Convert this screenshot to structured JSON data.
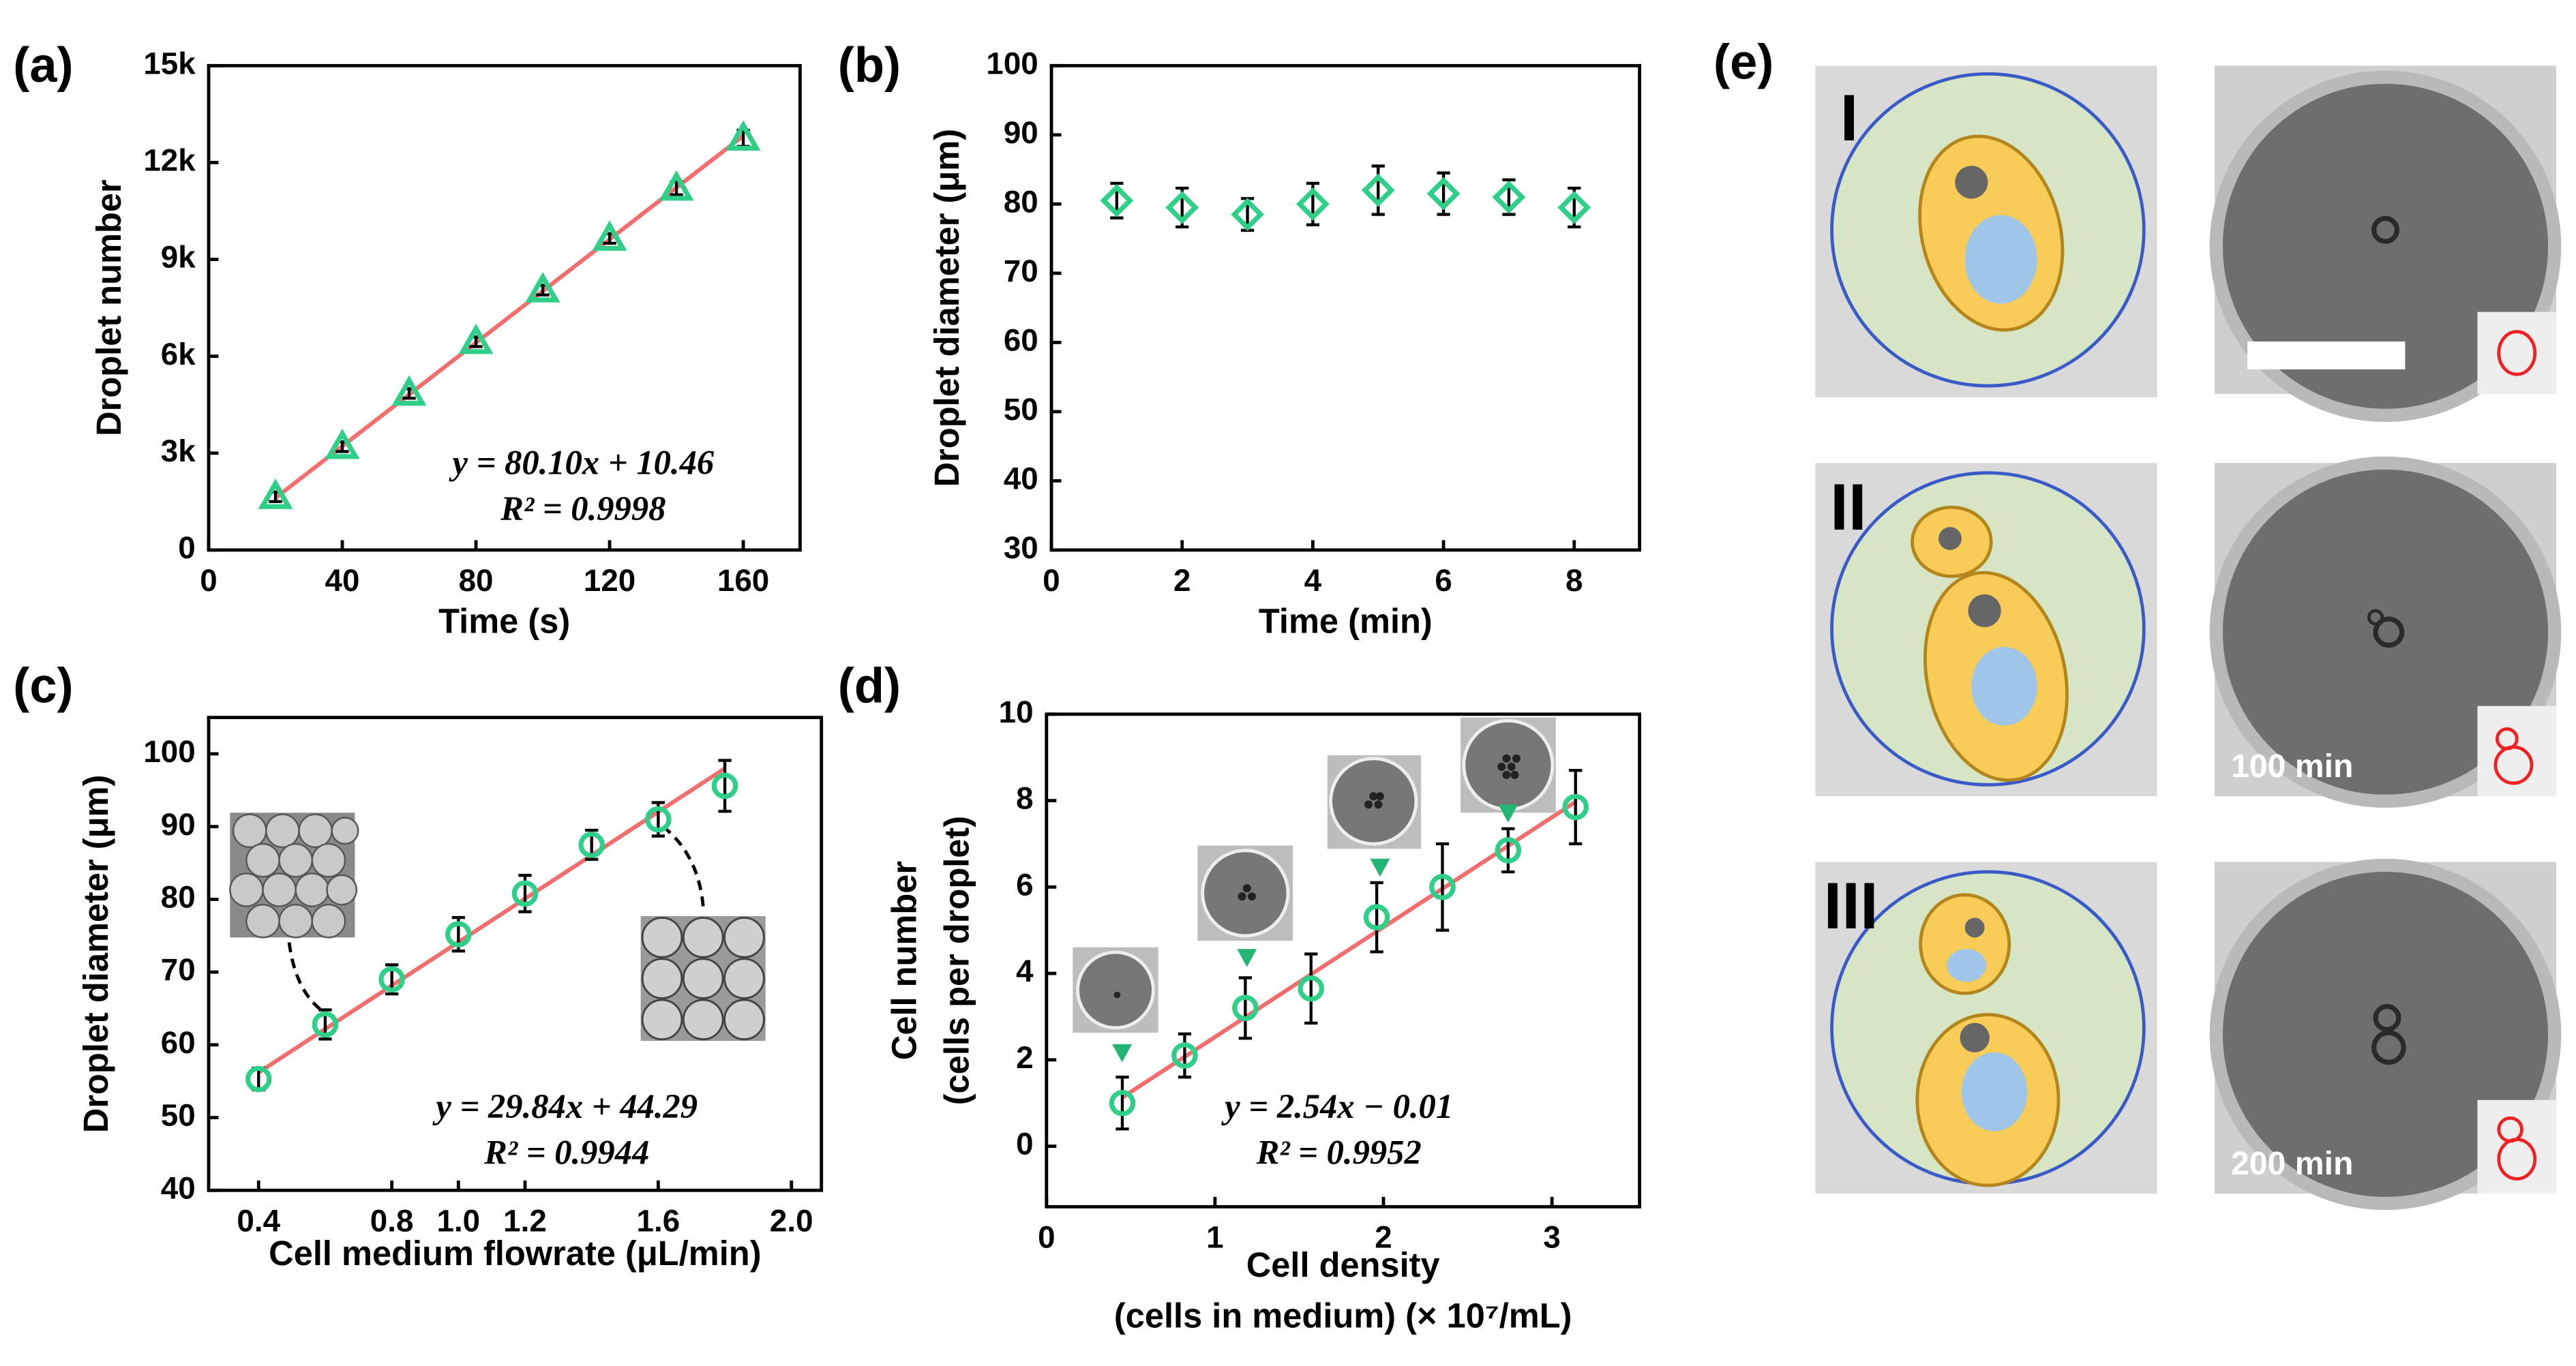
{
  "chart_data": [
    {
      "type": "scatter",
      "panel_label": "(a)",
      "xlabel": "Time (s)",
      "ylabel": "Droplet number",
      "marker": "triangle",
      "color": "#2fcf8a",
      "x": [
        20,
        40,
        60,
        80,
        100,
        120,
        140,
        160
      ],
      "values": [
        1650,
        3200,
        4850,
        6450,
        8050,
        9650,
        11200,
        12750
      ],
      "errors": [
        150,
        150,
        150,
        150,
        150,
        150,
        200,
        250
      ],
      "xlim": [
        0,
        177
      ],
      "xticks": [
        0,
        40,
        80,
        120,
        160
      ],
      "ylim": [
        0,
        15000
      ],
      "yticks": [
        0,
        {
          "value": 3000,
          "label": "3k"
        },
        {
          "value": 6000,
          "label": "6k"
        },
        {
          "value": 9000,
          "label": "9k"
        },
        {
          "value": 12000,
          "label": "12k"
        },
        {
          "value": 15000,
          "label": "15k"
        }
      ],
      "fit": {
        "x": [
          20,
          160
        ],
        "values": [
          1612,
          12826
        ],
        "color": "#f26d6d"
      },
      "equation": [
        "y = 80.10x + 10.46",
        "R² = 0.9998"
      ]
    },
    {
      "type": "scatter",
      "panel_label": "(b)",
      "xlabel": "Time (min)",
      "ylabel": "Droplet diameter (μm)",
      "marker": "diamond",
      "color": "#2fcf8a",
      "x": [
        1,
        2,
        3,
        4,
        5,
        6,
        7,
        8
      ],
      "values": [
        80.5,
        79.5,
        78.5,
        80,
        82,
        81.5,
        81,
        79.5
      ],
      "errors": [
        2.5,
        2.8,
        2.3,
        3,
        3.5,
        3,
        2.5,
        2.8
      ],
      "xlim": [
        0,
        9
      ],
      "xticks": [
        0,
        2,
        4,
        6,
        8
      ],
      "ylim": [
        30,
        100
      ],
      "yticks": [
        30,
        40,
        50,
        60,
        70,
        80,
        90,
        100
      ]
    },
    {
      "type": "scatter",
      "panel_label": "(c)",
      "xlabel": "Cell medium flowrate (μL/min)",
      "ylabel": "Droplet diameter (μm)",
      "marker": "circle",
      "color": "#2fcf8a",
      "x": [
        0.4,
        0.6,
        0.8,
        1.0,
        1.2,
        1.4,
        1.6,
        1.8
      ],
      "values": [
        55.3,
        62.8,
        69,
        75.2,
        80.8,
        87.5,
        91,
        95.6
      ],
      "errors": [
        1.5,
        2,
        2,
        2.3,
        2.5,
        2,
        2.3,
        3.5
      ],
      "xlim": [
        0.25,
        2.09
      ],
      "xticks": [
        0.4,
        0.8,
        {
          "value": 1,
          "label": "1.0"
        },
        1.2,
        1.6,
        {
          "value": 2,
          "label": "2.0"
        }
      ],
      "ylim": [
        40,
        105
      ],
      "yticks": [
        40,
        50,
        60,
        70,
        80,
        90,
        100
      ],
      "fit": {
        "x": [
          0.4,
          1.8
        ],
        "values": [
          56.2,
          98.0
        ],
        "color": "#f26d6d"
      },
      "equation": [
        "y = 29.84x + 44.29",
        "R² = 0.9944"
      ]
    },
    {
      "type": "scatter",
      "panel_label": "(d)",
      "xlabel": [
        "Cell density",
        "(cells in medium) (× 10⁷/mL)"
      ],
      "ylabel": [
        "Cell number",
        "(cells per droplet)"
      ],
      "marker": "circle",
      "color": "#2fcf8a",
      "x": [
        0.45,
        0.82,
        1.18,
        1.57,
        1.96,
        2.35,
        2.74,
        3.14
      ],
      "values": [
        1.0,
        2.1,
        3.2,
        3.65,
        5.3,
        6.0,
        6.85,
        7.85
      ],
      "errors": [
        0.6,
        0.5,
        0.7,
        0.8,
        0.8,
        1.0,
        0.5,
        0.85
      ],
      "xlim": [
        0,
        3.52
      ],
      "xticks": [
        0,
        1,
        2,
        3
      ],
      "ylim": [
        -1.4,
        10
      ],
      "yticks": [
        0,
        2,
        4,
        6,
        8,
        10
      ],
      "fit": {
        "x": [
          0.45,
          3.14
        ],
        "values": [
          1.13,
          7.97
        ],
        "color": "#f26d6d"
      },
      "equation": [
        "y = 2.54x − 0.01",
        "R² = 0.9952"
      ]
    }
  ],
  "panel_e": {
    "label": "(e)",
    "stages": [
      "I",
      "II",
      "III"
    ],
    "time_labels": [
      "100 min",
      "200 min"
    ]
  }
}
